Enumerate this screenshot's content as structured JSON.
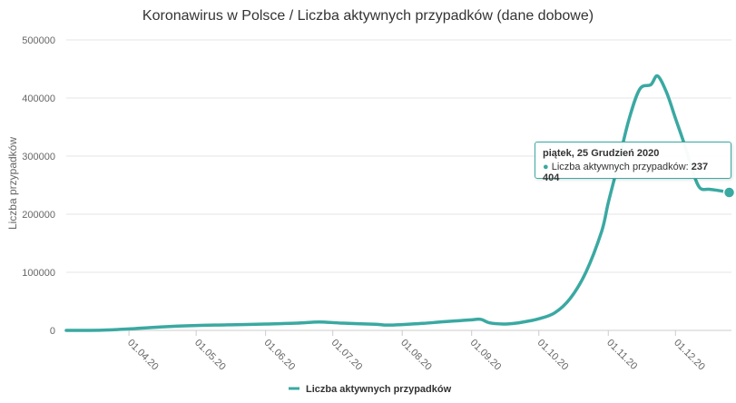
{
  "chart_data": {
    "type": "line",
    "title": "Koronawirus w Polsce / Liczba aktywnych przypadków (dane dobowe)",
    "xlabel": "",
    "ylabel": "Liczba przypadków",
    "ylim": [
      0,
      500000
    ],
    "y_ticks": [
      "0",
      "100000",
      "200000",
      "300000",
      "400000",
      "500000"
    ],
    "y_tick_values": [
      0,
      100000,
      200000,
      300000,
      400000,
      500000
    ],
    "x_range": [
      "2020-03-04",
      "2020-12-26"
    ],
    "x_ticks": [
      {
        "date": "2020-04-01",
        "label": "01.04.20"
      },
      {
        "date": "2020-05-01",
        "label": "01.05.20"
      },
      {
        "date": "2020-06-01",
        "label": "01.06.20"
      },
      {
        "date": "2020-07-01",
        "label": "01.07.20"
      },
      {
        "date": "2020-08-01",
        "label": "01.08.20"
      },
      {
        "date": "2020-09-01",
        "label": "01.09.20"
      },
      {
        "date": "2020-10-01",
        "label": "01.10.20"
      },
      {
        "date": "2020-11-01",
        "label": "01.11.20"
      },
      {
        "date": "2020-12-01",
        "label": "01.12.20"
      }
    ],
    "grid": true,
    "legend_position": "bottom",
    "series": [
      {
        "name": "Liczba aktywnych przypadków",
        "color": "#3aa9a2",
        "points": [
          [
            "2020-03-04",
            0
          ],
          [
            "2020-03-20",
            400
          ],
          [
            "2020-04-01",
            2500
          ],
          [
            "2020-04-15",
            6000
          ],
          [
            "2020-05-01",
            8500
          ],
          [
            "2020-05-15",
            9500
          ],
          [
            "2020-06-01",
            11000
          ],
          [
            "2020-06-15",
            12500
          ],
          [
            "2020-06-25",
            14500
          ],
          [
            "2020-07-05",
            12500
          ],
          [
            "2020-07-20",
            10500
          ],
          [
            "2020-07-25",
            9200
          ],
          [
            "2020-08-01",
            10000
          ],
          [
            "2020-08-10",
            12000
          ],
          [
            "2020-08-20",
            15000
          ],
          [
            "2020-08-31",
            18000
          ],
          [
            "2020-09-05",
            19000
          ],
          [
            "2020-09-09",
            13000
          ],
          [
            "2020-09-15",
            11000
          ],
          [
            "2020-09-20",
            12000
          ],
          [
            "2020-09-25",
            15000
          ],
          [
            "2020-10-01",
            20000
          ],
          [
            "2020-10-08",
            30000
          ],
          [
            "2020-10-15",
            55000
          ],
          [
            "2020-10-22",
            100000
          ],
          [
            "2020-10-29",
            170000
          ],
          [
            "2020-11-01",
            220000
          ],
          [
            "2020-11-05",
            280000
          ],
          [
            "2020-11-10",
            360000
          ],
          [
            "2020-11-15",
            415000
          ],
          [
            "2020-11-20",
            423000
          ],
          [
            "2020-11-23",
            438000
          ],
          [
            "2020-11-27",
            410000
          ],
          [
            "2020-12-01",
            365000
          ],
          [
            "2020-12-05",
            320000
          ],
          [
            "2020-12-09",
            270000
          ],
          [
            "2020-12-12",
            245000
          ],
          [
            "2020-12-16",
            243000
          ],
          [
            "2020-12-20",
            241000
          ],
          [
            "2020-12-25",
            237404
          ]
        ]
      }
    ],
    "tooltip": {
      "date": "piątek, 25 Grudzień 2020",
      "series_label": "Liczba aktywnych przypadków:",
      "value_label": "237 404",
      "value": 237404,
      "date_iso": "2020-12-25"
    }
  }
}
